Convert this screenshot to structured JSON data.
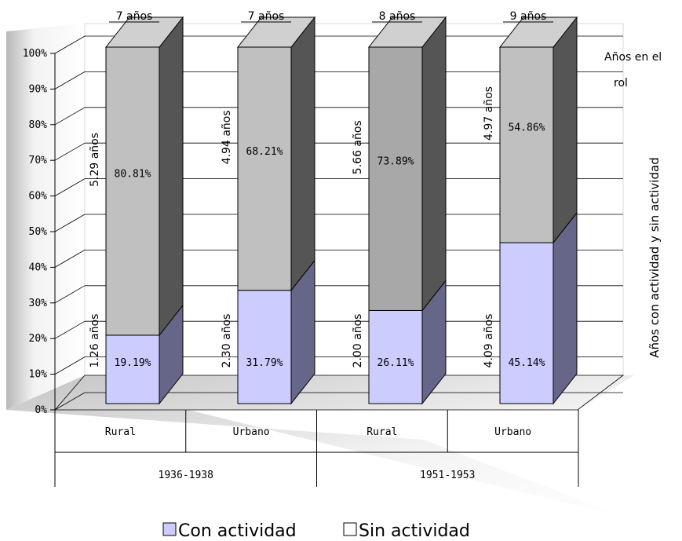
{
  "chart_data": {
    "type": "bar",
    "stacked": true,
    "percent_stacked": true,
    "groups": [
      "1936-1938",
      "1951-1953"
    ],
    "categories": [
      "Rural",
      "Urbano",
      "Rural",
      "Urbano"
    ],
    "category_group": [
      0,
      0,
      1,
      1
    ],
    "totals_labels": [
      "7 años",
      "7 años",
      "8 años",
      "9 años"
    ],
    "series": [
      {
        "name": "Con actividad",
        "color": "#ccccff",
        "values": [
          19.19,
          31.79,
          26.11,
          45.14
        ],
        "value_labels": [
          "19.19%",
          "31.79%",
          "26.11%",
          "45.14%"
        ],
        "year_labels": [
          "1.26 años",
          "2.30 años",
          "2.00 años",
          "4.09 años"
        ]
      },
      {
        "name": "Sin actividad",
        "color": "#c0c0c0",
        "values": [
          80.81,
          68.21,
          73.89,
          54.86
        ],
        "value_labels": [
          "80.81%",
          "68.21%",
          "73.89%",
          "54.86%"
        ],
        "year_labels": [
          "5.29 años",
          "4.94 años",
          "5.66 años",
          "4.97 años"
        ]
      }
    ],
    "y_ticks": [
      "0%",
      "10%",
      "20%",
      "30%",
      "40%",
      "50%",
      "60%",
      "70%",
      "80%",
      "90%",
      "100%"
    ],
    "ylim": [
      0,
      100
    ],
    "ylabel": "Años con actividad y sin actividad",
    "side_label": "Años en el rol",
    "side_label_lines": [
      "Años en el",
      "rol"
    ],
    "grid": true,
    "legend_position": "bottom"
  }
}
